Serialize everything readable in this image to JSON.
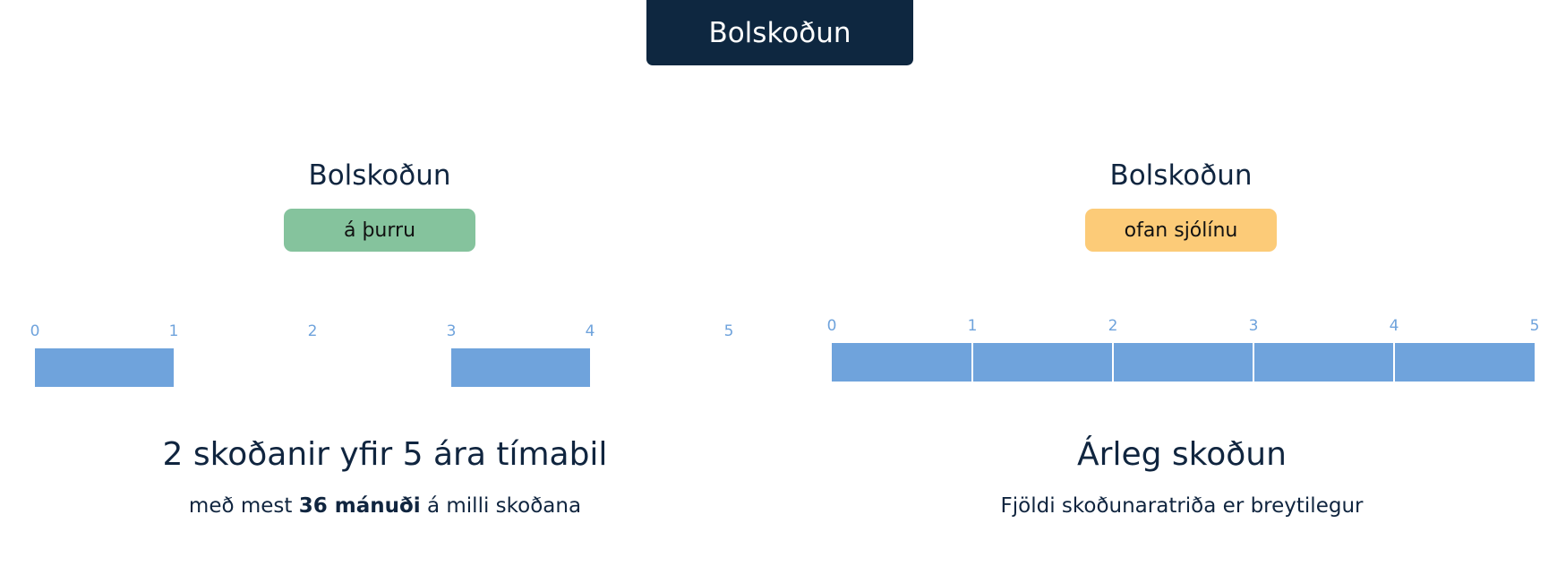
{
  "header": {
    "title": "Bolskoðun"
  },
  "colors": {
    "navy": "#0e2740",
    "green_pill": "#85c39d",
    "orange_pill": "#fccb78",
    "bar_blue": "#6fa3dc"
  },
  "left_panel": {
    "title": "Bolskoðun",
    "pill_label": "á þurru",
    "headline": "2 skoðanir yfir 5 ára tímabil",
    "subline_prefix": "með mest",
    "subline_bold": "36 mánuði",
    "subline_suffix": "á milli skoðana"
  },
  "right_panel": {
    "title": "Bolskoðun",
    "pill_label": "ofan sjólínu",
    "headline": "Árleg skoðun",
    "subline": "Fjöldi skoðunaratriða er breytilegur"
  },
  "chart_data": [
    {
      "type": "bar",
      "axis_ticks": [
        "0",
        "1",
        "2",
        "3",
        "4",
        "5"
      ],
      "xlim": [
        0,
        5
      ],
      "inspections": [
        {
          "start_year": 0,
          "end_year": 1
        },
        {
          "start_year": 3,
          "end_year": 4
        }
      ]
    },
    {
      "type": "bar",
      "axis_ticks": [
        "0",
        "1",
        "2",
        "3",
        "4",
        "5"
      ],
      "xlim": [
        0,
        5
      ],
      "inspections": [
        {
          "start_year": 0,
          "end_year": 1
        },
        {
          "start_year": 1,
          "end_year": 2
        },
        {
          "start_year": 2,
          "end_year": 3
        },
        {
          "start_year": 3,
          "end_year": 4
        },
        {
          "start_year": 4,
          "end_year": 5
        }
      ]
    }
  ]
}
